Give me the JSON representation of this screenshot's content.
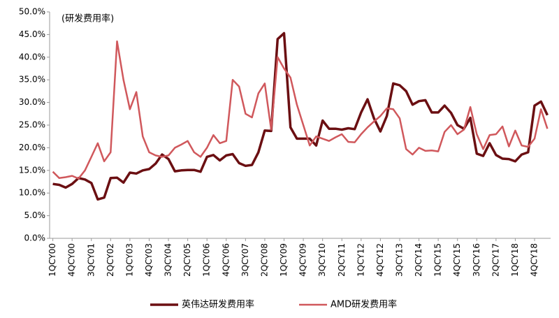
{
  "chart_data": {
    "type": "line",
    "annotation": "(研发费用率)",
    "categories": [
      "1QCY00",
      null,
      null,
      "4QCY00",
      null,
      null,
      "3QCY01",
      null,
      null,
      "2QCY02",
      null,
      null,
      "1QCY03",
      null,
      null,
      "4QCY03",
      null,
      null,
      "3QCY04",
      null,
      null,
      "2QCY05",
      null,
      null,
      "1QCY06",
      null,
      null,
      "4QCY06",
      null,
      null,
      "3QCY07",
      null,
      null,
      "2QCY08",
      null,
      null,
      "1QCY09",
      null,
      null,
      "4QCY09",
      null,
      null,
      "3QCY10",
      null,
      null,
      "2QCY11",
      null,
      null,
      "1QCY12",
      null,
      null,
      "4QCY12",
      null,
      null,
      "3QCY13",
      null,
      null,
      "2QCY14",
      null,
      null,
      "1QCY15",
      null,
      null,
      "4QCY15",
      null,
      null,
      "3QCY16",
      null,
      null,
      "2QCY17",
      null,
      null,
      "1QCY18",
      null,
      null,
      "4QCY18",
      null,
      null
    ],
    "series": [
      {
        "name": "英伟达研发费用率",
        "color": "#6b0f12",
        "values": [
          12,
          11.8,
          11.2,
          12,
          13.3,
          13,
          12.2,
          8.6,
          9,
          13.3,
          13.4,
          12.3,
          14.5,
          14.3,
          15,
          15.3,
          16.5,
          18.5,
          17.5,
          14.8,
          15,
          15.1,
          15.1,
          14.7,
          18,
          18.4,
          17.2,
          18.3,
          18.6,
          16.6,
          16,
          16.2,
          19,
          23.8,
          23.7,
          44,
          45.3,
          24.5,
          22,
          22,
          22,
          20.5,
          26,
          24.2,
          24.2,
          24,
          24.3,
          24.1,
          27.8,
          30.7,
          26.5,
          23.6,
          27,
          34.2,
          33.8,
          32.5,
          29.5,
          30.3,
          30.5,
          27.8,
          27.8,
          29.3,
          27.7,
          25,
          24.2,
          26.6,
          18.7,
          18.2,
          21,
          18.4,
          17.6,
          17.5,
          17,
          18.5,
          19,
          29.3,
          30.2,
          27.2
        ]
      },
      {
        "name": "AMD研发费用率",
        "color": "#d0585c",
        "values": [
          14.7,
          13.3,
          13.5,
          13.8,
          13.2,
          15,
          18,
          21,
          17,
          19,
          43.5,
          35,
          28.5,
          32.3,
          22.5,
          19,
          18.3,
          18,
          18.3,
          20,
          20.7,
          21.5,
          19,
          18,
          20,
          22.8,
          21,
          21.5,
          35,
          33.5,
          27.5,
          26.7,
          32,
          34.2,
          24,
          40,
          37.5,
          35.5,
          29.5,
          25,
          20.5,
          22.5,
          22,
          21.5,
          22.3,
          23,
          21.3,
          21.2,
          23,
          24.5,
          25.8,
          27,
          28.7,
          28.5,
          26.5,
          19.7,
          18.5,
          20,
          19.3,
          19.4,
          19.2,
          23.5,
          25,
          23,
          24,
          29,
          23,
          19.7,
          22.8,
          23,
          24.7,
          20.3,
          23.8,
          20.5,
          20.2,
          22,
          28.5,
          24.2
        ]
      }
    ],
    "ylim": [
      0,
      50
    ],
    "yticks": [
      {
        "value": 0,
        "label": "0.0%"
      },
      {
        "value": 5,
        "label": "5.0%"
      },
      {
        "value": 10,
        "label": "10.0%"
      },
      {
        "value": 15,
        "label": "15.0%"
      },
      {
        "value": 20,
        "label": "20.0%"
      },
      {
        "value": 25,
        "label": "25.0%"
      },
      {
        "value": 30,
        "label": "30.0%"
      },
      {
        "value": 35,
        "label": "35.0%"
      },
      {
        "value": 40,
        "label": "40.0%"
      },
      {
        "value": 45,
        "label": "45.0%"
      },
      {
        "value": 50,
        "label": "50.0%"
      }
    ],
    "grid": false,
    "legend": "bottom"
  }
}
